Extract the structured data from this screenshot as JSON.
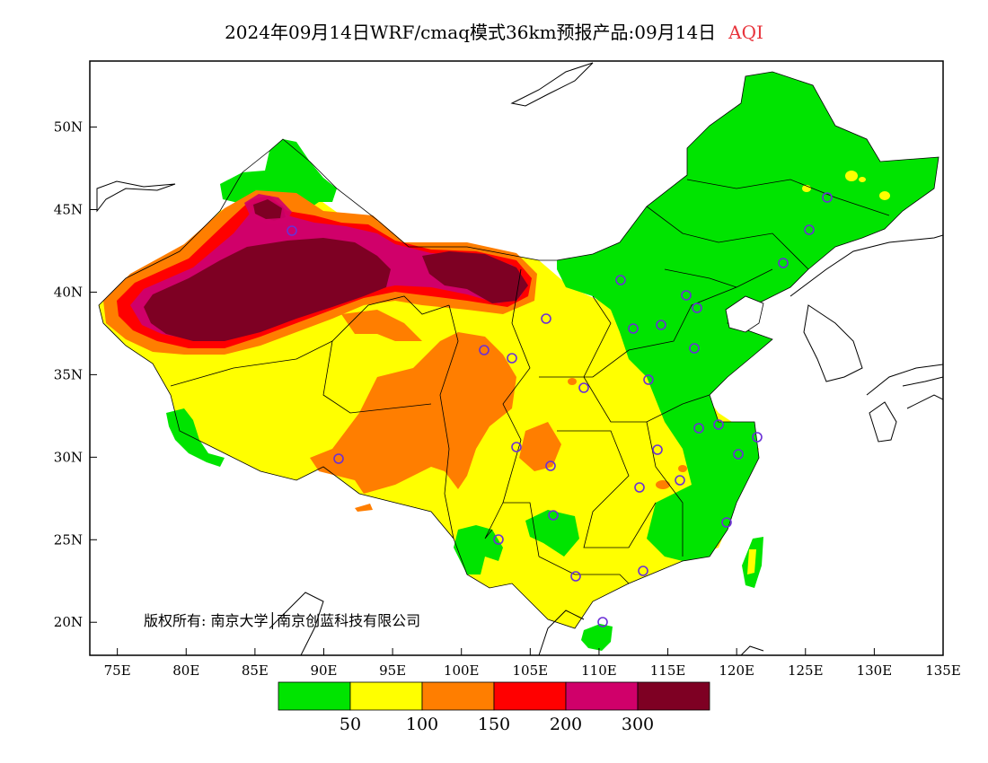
{
  "title": {
    "main": "2024年09月14日WRF/cmaq模式36km预报产品:09月14日",
    "variable": "AQI"
  },
  "copyright": "版权所有: 南京大学│南京创蓝科技有限公司",
  "colors": {
    "good": "#00e400",
    "moderate": "#ffff00",
    "usg": "#ff7e00",
    "unhealthy": "#ff0000",
    "very_unhealthy": "#d0006a",
    "hazardous": "#7e0023",
    "station_marker": "#6a2fd6"
  },
  "axes": {
    "x_ticks": [
      "75E",
      "80E",
      "85E",
      "90E",
      "95E",
      "100E",
      "105E",
      "110E",
      "115E",
      "120E",
      "125E",
      "130E",
      "135E"
    ],
    "y_ticks": [
      "50N",
      "45N",
      "40N",
      "35N",
      "30N",
      "25N",
      "20N"
    ]
  },
  "legend": {
    "thresholds": [
      "50",
      "100",
      "150",
      "200",
      "300"
    ]
  }
}
